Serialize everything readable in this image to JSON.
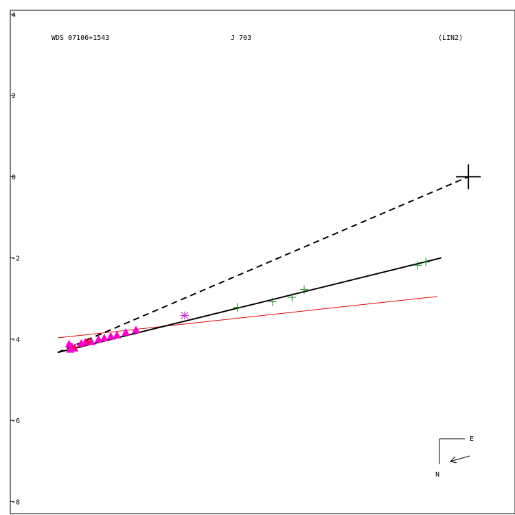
{
  "chart_data": {
    "type": "scatter",
    "header": {
      "left": "WDS 07106+1543",
      "center": "J   703",
      "right": "(LIN2)"
    },
    "y_ticks": [
      "4",
      "2",
      "0",
      "-2",
      "-4",
      "-6",
      "-8"
    ],
    "y_tick_values": [
      4,
      2,
      0,
      -2,
      -4,
      -6,
      -8
    ],
    "ylim": [
      -8.3,
      4.1
    ],
    "xlim": [
      -11.3,
      1.15
    ],
    "grid": false,
    "colors": {
      "triangles": "#ff00cc",
      "crosses": "#008800",
      "star": "#cc22cc",
      "fit_line": "#000000",
      "red_line": "#dd0000"
    },
    "primary": [
      0.0,
      0.0
    ],
    "lines": {
      "dashed_to_primary": {
        "from": [
          -10.13,
          -4.33
        ],
        "to": [
          0.0,
          0.0
        ]
      },
      "fit": {
        "from": [
          -10.13,
          -4.33
        ],
        "to": [
          -0.67,
          -2.0
        ]
      },
      "red": {
        "from": [
          -10.13,
          -3.97
        ],
        "to": [
          -0.77,
          -2.95
        ]
      }
    },
    "triangles": [
      [
        -9.85,
        -4.12
      ],
      [
        -9.82,
        -4.25
      ],
      [
        -9.78,
        -4.18
      ],
      [
        -9.72,
        -4.22
      ],
      [
        -9.55,
        -4.1
      ],
      [
        -9.45,
        -4.07
      ],
      [
        -9.3,
        -4.06
      ],
      [
        -9.12,
        -4.0
      ],
      [
        -8.98,
        -3.97
      ],
      [
        -8.82,
        -3.93
      ],
      [
        -8.67,
        -3.9
      ],
      [
        -8.45,
        -3.83
      ],
      [
        -8.2,
        -3.77
      ]
    ],
    "star": [
      -7.0,
      -3.42
    ],
    "red_stars": [
      [
        -9.38,
        -4.05
      ],
      [
        -9.7,
        -4.2
      ]
    ],
    "crosses": [
      [
        -5.7,
        -3.22
      ],
      [
        -4.83,
        -3.08
      ],
      [
        -4.35,
        -2.97
      ],
      [
        -4.05,
        -2.78
      ],
      [
        -1.25,
        -2.18
      ],
      [
        -1.05,
        -2.1
      ]
    ],
    "compass": {
      "east_label": "E",
      "north_label": "N"
    }
  }
}
